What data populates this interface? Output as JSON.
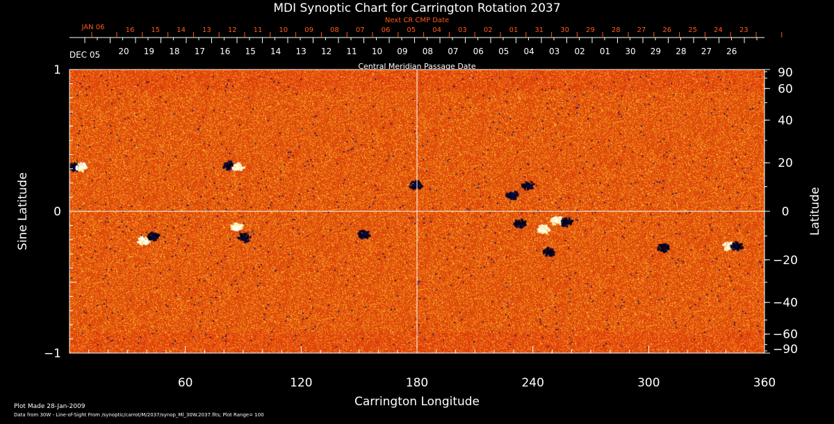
{
  "chart_data": {
    "type": "heatmap",
    "title": "MDI Synoptic Chart for Carrington Rotation 2037",
    "xlabel": "Carrington Longitude",
    "ylabel": "Sine Latitude",
    "ylabel_right": "Latitude",
    "xlim": [
      0,
      360
    ],
    "ylim": [
      -1,
      1
    ],
    "x_ticks": [
      "60",
      "120",
      "180",
      "240",
      "300",
      "360"
    ],
    "y_ticks": [
      {
        "v": 1,
        "label": "1"
      },
      {
        "v": 0,
        "label": "0"
      },
      {
        "v": -1,
        "label": "−1"
      }
    ],
    "right_ticks": [
      90,
      60,
      40,
      20,
      0,
      -20,
      -40,
      -60,
      -90
    ],
    "right_tick_labels": [
      "90",
      "60",
      "40",
      "20",
      "0",
      "−20",
      "−40",
      "−60",
      "−90"
    ],
    "top_axis_label": "Central Meridian Passage Date",
    "top_axis_start": "DEC 05",
    "top_axis_ticks": [
      "20",
      "19",
      "18",
      "17",
      "16",
      "15",
      "14",
      "13",
      "12",
      "11",
      "10",
      "09",
      "08",
      "07",
      "06",
      "05",
      "04",
      "03",
      "02",
      "01",
      "30",
      "29",
      "28",
      "27",
      "26"
    ],
    "next_cr_label": "Next CR CMP Date",
    "next_cr_start": "JAN 06",
    "next_cr_ticks": [
      "16",
      "15",
      "14",
      "13",
      "12",
      "11",
      "10",
      "09",
      "08",
      "07",
      "06",
      "05",
      "04",
      "03",
      "02",
      "01",
      "31",
      "30",
      "29",
      "28",
      "27",
      "26",
      "25",
      "24",
      "23"
    ],
    "grid_lines": {
      "longitude": 180,
      "sine_latitude": 0
    },
    "plot_range": 100,
    "colors": {
      "background_field": "#e8481a",
      "positive": "#fff8c0",
      "negative": "#0a0a40",
      "axis": "#ffffff",
      "next_cr": "#ff5a1a"
    },
    "features": [
      {
        "lon": 2,
        "sinlat": 0.32,
        "polarity": -1
      },
      {
        "lon": 6,
        "sinlat": 0.32,
        "polarity": 1
      },
      {
        "lon": 82,
        "sinlat": 0.33,
        "polarity": -1
      },
      {
        "lon": 87,
        "sinlat": 0.32,
        "polarity": 1
      },
      {
        "lon": 38,
        "sinlat": -0.2,
        "polarity": 1
      },
      {
        "lon": 43,
        "sinlat": -0.17,
        "polarity": -1
      },
      {
        "lon": 86,
        "sinlat": -0.1,
        "polarity": 1
      },
      {
        "lon": 90,
        "sinlat": -0.18,
        "polarity": -1
      },
      {
        "lon": 152,
        "sinlat": -0.16,
        "polarity": -1
      },
      {
        "lon": 179,
        "sinlat": 0.19,
        "polarity": -1
      },
      {
        "lon": 229,
        "sinlat": 0.12,
        "polarity": -1
      },
      {
        "lon": 237,
        "sinlat": 0.19,
        "polarity": -1
      },
      {
        "lon": 233,
        "sinlat": -0.08,
        "polarity": -1
      },
      {
        "lon": 245,
        "sinlat": -0.12,
        "polarity": 1
      },
      {
        "lon": 252,
        "sinlat": -0.06,
        "polarity": 1
      },
      {
        "lon": 257,
        "sinlat": -0.07,
        "polarity": -1
      },
      {
        "lon": 248,
        "sinlat": -0.28,
        "polarity": -1
      },
      {
        "lon": 307,
        "sinlat": -0.25,
        "polarity": -1
      },
      {
        "lon": 341,
        "sinlat": -0.24,
        "polarity": 1
      },
      {
        "lon": 345,
        "sinlat": -0.24,
        "polarity": -1
      }
    ]
  },
  "footer": {
    "plot_made": "Plot Made 28-Jan-2009",
    "data_source": "Data from 30W - Line-of-Sight From /synoptic/carrot/M/2037/synop_Ml_30W.2037.fits; Plot Range=  100"
  }
}
